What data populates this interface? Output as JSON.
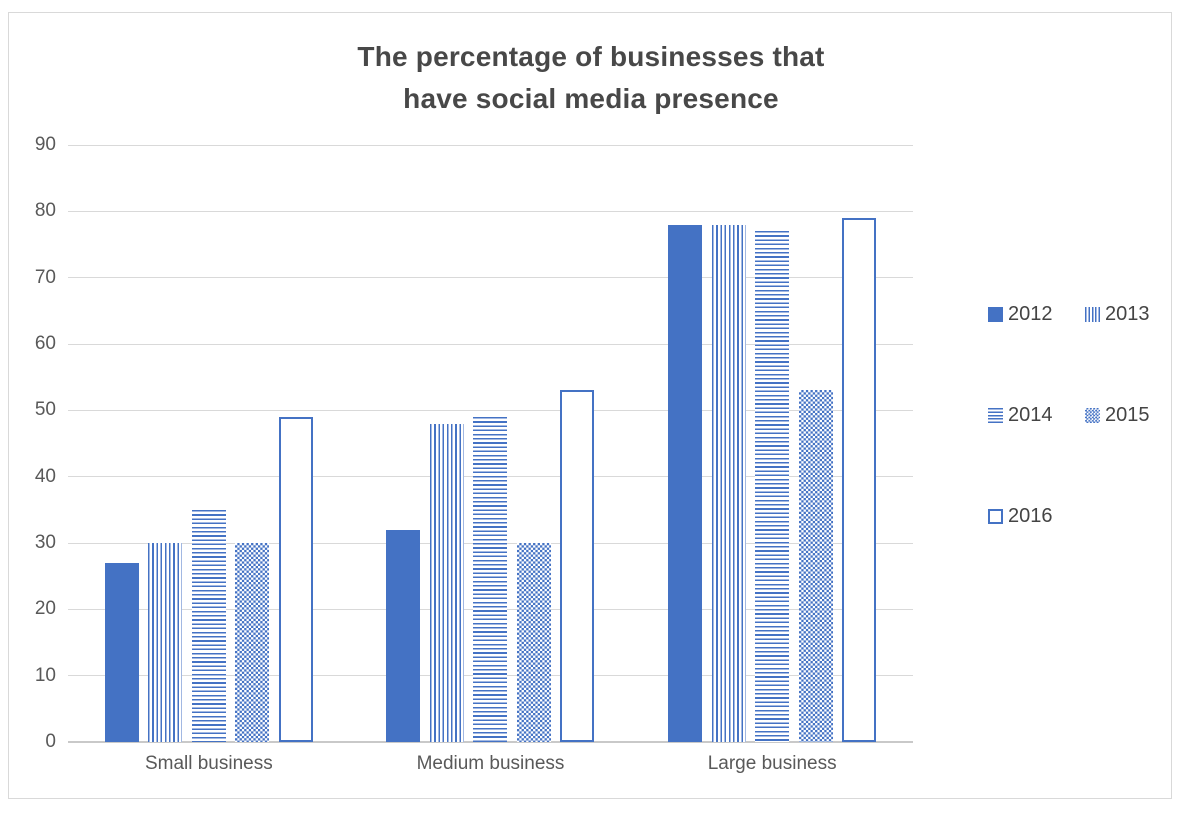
{
  "title": {
    "line1": "The percentage of businesses that",
    "line2": "have social media presence"
  },
  "chart_data": {
    "type": "bar",
    "title": "The percentage of businesses that have social media presence",
    "categories": [
      "Small business",
      "Medium business",
      "Large business"
    ],
    "series": [
      {
        "name": "2012",
        "pattern": "solid",
        "values": [
          27,
          32,
          78
        ]
      },
      {
        "name": "2013",
        "pattern": "vertical-stripes",
        "values": [
          30,
          48,
          78
        ]
      },
      {
        "name": "2014",
        "pattern": "horizontal-stripes",
        "values": [
          35,
          49,
          77
        ]
      },
      {
        "name": "2015",
        "pattern": "checker",
        "values": [
          30,
          30,
          53
        ]
      },
      {
        "name": "2016",
        "pattern": "outline",
        "values": [
          49,
          53,
          79
        ]
      }
    ],
    "ylim": [
      0,
      90
    ],
    "yticks": [
      0,
      10,
      20,
      30,
      40,
      50,
      60,
      70,
      80,
      90
    ],
    "xlabel": "",
    "ylabel": "",
    "grid": "horizontal",
    "legend_position": "right",
    "legend_rows": [
      [
        "2012",
        "2013"
      ],
      [
        "2014",
        "2015"
      ],
      [
        "2016"
      ]
    ]
  },
  "colors": {
    "bar_blue": "#4472C4",
    "gridline": "#D9D9D9",
    "axis_text": "#595959",
    "title_text": "#484848",
    "legend_text": "#444444",
    "frame_border": "#D9D9D9",
    "background": "#FFFFFF"
  }
}
